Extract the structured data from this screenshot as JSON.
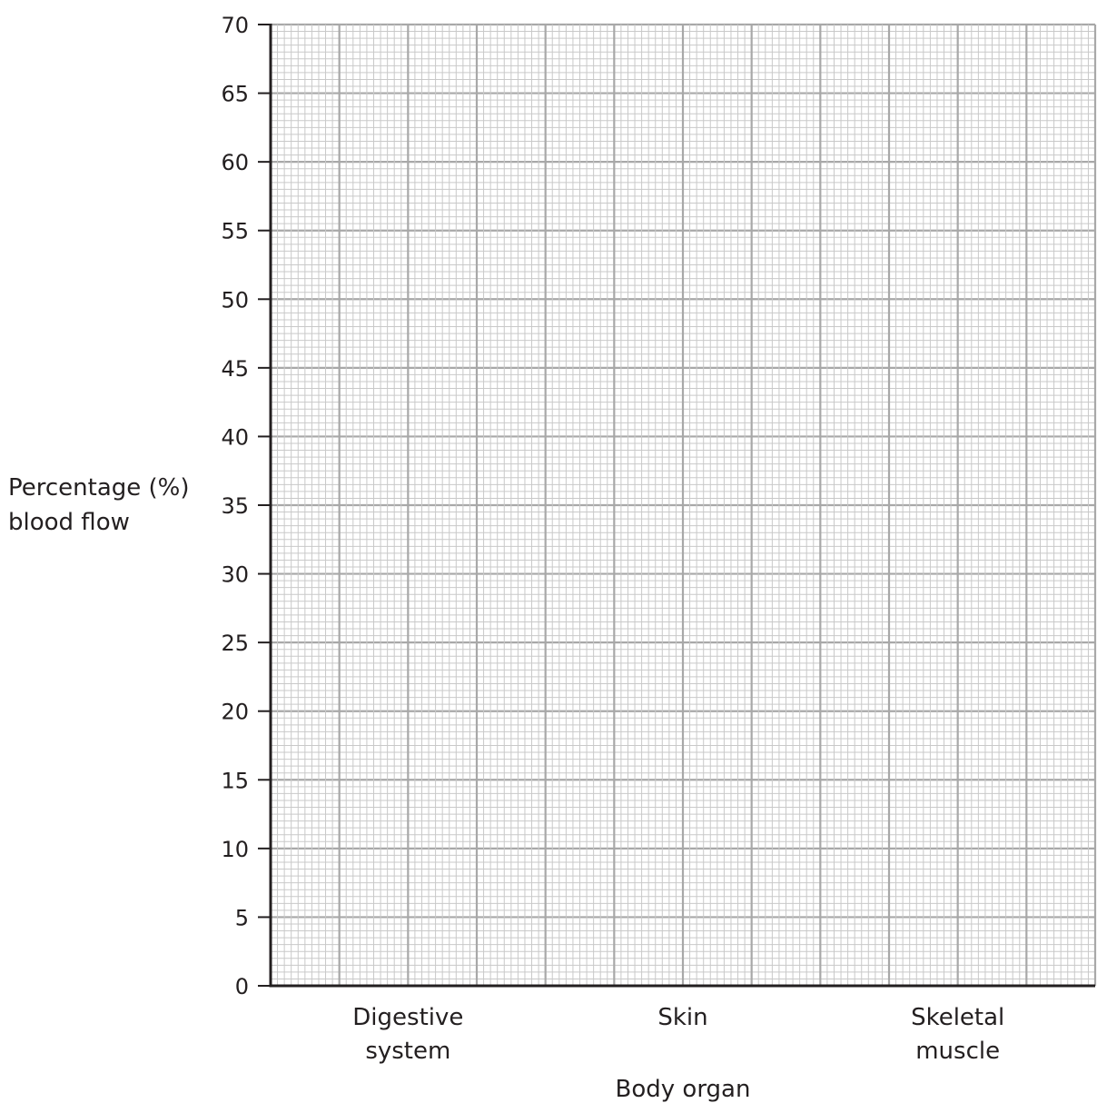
{
  "chart_data": {
    "type": "bar",
    "categories": [
      [
        "Digestive",
        "system"
      ],
      [
        "Skin"
      ],
      [
        "Skeletal",
        "muscle"
      ]
    ],
    "series": [],
    "ylabel": [
      "Percentage (%)",
      "blood flow"
    ],
    "xlabel": "Body organ",
    "ylim": [
      0,
      70
    ],
    "ytick_labels": [
      "0",
      "5",
      "10",
      "15",
      "20",
      "25",
      "30",
      "35",
      "40",
      "45",
      "50",
      "55",
      "60",
      "65",
      "70"
    ],
    "grid": true,
    "legend": "none"
  },
  "colors": {
    "axis": "#231f20",
    "grid_minor": "#c9c9c9",
    "grid_major": "#a8a8a8",
    "text": "#231f20"
  }
}
